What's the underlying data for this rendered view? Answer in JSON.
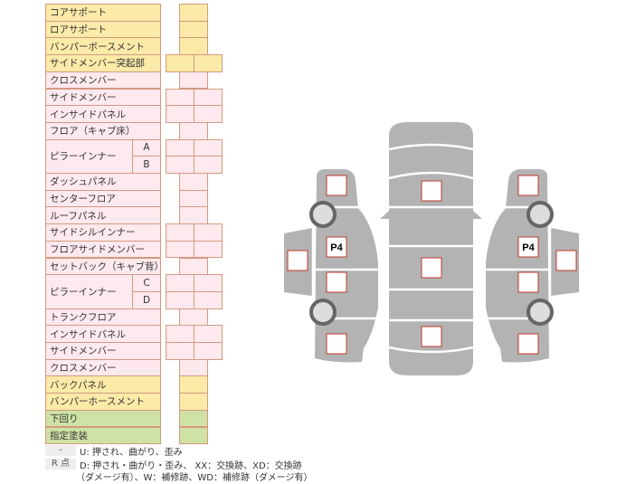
{
  "colors": {
    "yellow": "#fbeaa8",
    "pink": "#fde9ee",
    "green": "#cfe2a6",
    "border": "#d49a7e",
    "car_gray": "#b3b3b3",
    "marker_border": "#c0392b"
  },
  "rows": [
    {
      "label": "コアサポート",
      "color": "yellow",
      "cells": "single"
    },
    {
      "label": "ロアサポート",
      "color": "yellow",
      "cells": "single"
    },
    {
      "label": "バンパーボースメント",
      "color": "yellow",
      "cells": "single"
    },
    {
      "label": "サイドメンバー突起部",
      "color": "yellow",
      "cells": "double"
    },
    {
      "label": "クロスメンバー",
      "color": "pink",
      "cells": "single"
    },
    {
      "label": "サイドメンバー",
      "color": "pink",
      "cells": "double"
    },
    {
      "label": "インサイドパネル",
      "color": "pink",
      "cells": "double"
    },
    {
      "label": "フロア（キャブ床）",
      "color": "pink",
      "cells": "single"
    },
    {
      "label": "ピラーインナー",
      "sub": "A",
      "group": "start",
      "color": "pink",
      "cells": "double"
    },
    {
      "label": "",
      "sub": "B",
      "group": "cont",
      "color": "pink",
      "cells": "double"
    },
    {
      "label": "ダッシュパネル",
      "color": "pink",
      "cells": "single"
    },
    {
      "label": "センターフロア",
      "color": "pink",
      "cells": "single"
    },
    {
      "label": "ルーフパネル",
      "color": "pink",
      "cells": "single"
    },
    {
      "label": "サイドシルインナー",
      "color": "pink",
      "cells": "double"
    },
    {
      "label": "フロアサイドメンバー",
      "color": "pink",
      "cells": "double"
    },
    {
      "label": "セットバック（キャブ背）",
      "color": "pink",
      "cells": "single"
    },
    {
      "label": "ピラーインナー",
      "sub": "C",
      "group": "start",
      "color": "pink",
      "cells": "double"
    },
    {
      "label": "",
      "sub": "D",
      "group": "cont",
      "color": "pink",
      "cells": "double"
    },
    {
      "label": "トランクフロア",
      "color": "pink",
      "cells": "single"
    },
    {
      "label": "インサイドパネル",
      "color": "pink",
      "cells": "double"
    },
    {
      "label": "サイドメンバー",
      "color": "pink",
      "cells": "double"
    },
    {
      "label": "クロスメンバー",
      "color": "pink",
      "cells": "single"
    },
    {
      "label": "バックパネル",
      "color": "yellow",
      "cells": "single"
    },
    {
      "label": "バンパーホースメント",
      "color": "yellow",
      "cells": "single"
    },
    {
      "label": "下回り",
      "color": "green",
      "cells": "single"
    },
    {
      "label": "指定塗装",
      "color": "green",
      "cells": "single"
    }
  ],
  "legend": {
    "key1": "-",
    "text1": "U: 押され、曲がり、歪み",
    "key2": "R 点",
    "text2": "D: 押され・曲がり・歪み、 XX：交換跡、XD：交換跡",
    "text3": "（ダメージ有）、W：補修跡、WD：補修跡（ダメージ有）"
  },
  "diagram": {
    "left_label": "P4",
    "right_label": "P4"
  }
}
